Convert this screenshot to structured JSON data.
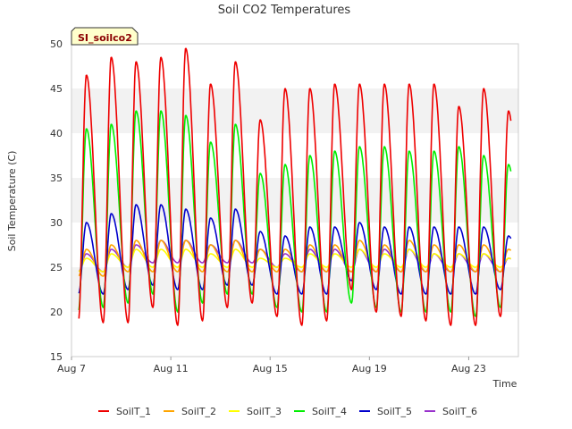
{
  "chart_data": {
    "type": "line",
    "title": "Soil CO2 Temperatures",
    "badge": "SI_soilco2",
    "xlabel": "Time",
    "ylabel": "Soil Temperature (C)",
    "ylim": [
      15,
      50
    ],
    "yticks": [
      15,
      20,
      25,
      30,
      35,
      40,
      45,
      50
    ],
    "xlim_days": [
      7,
      25
    ],
    "xticks": [
      {
        "day": 7,
        "label": "Aug 7"
      },
      {
        "day": 11,
        "label": "Aug 11"
      },
      {
        "day": 15,
        "label": "Aug 15"
      },
      {
        "day": 19,
        "label": "Aug 19"
      },
      {
        "day": 23,
        "label": "Aug 23"
      }
    ],
    "grid": "horizontal bands",
    "legend_position": "bottom",
    "series": [
      {
        "name": "SoilT_1",
        "color": "#ee0000",
        "peaks": [
          46.5,
          48.5,
          48.0,
          48.5,
          49.5,
          45.5,
          48.0,
          41.5,
          45.0,
          45.0,
          45.5,
          45.5,
          45.5,
          45.5,
          45.5,
          43.0,
          45.0,
          42.5
        ],
        "troughs": [
          19.0,
          18.8,
          18.8,
          20.5,
          18.5,
          19.0,
          20.5,
          21.0,
          19.5,
          18.5,
          19.0,
          22.5,
          20.0,
          19.5,
          19.0,
          18.5,
          18.5,
          19.5
        ]
      },
      {
        "name": "SoilT_2",
        "color": "#ffa500",
        "peaks": [
          27.0,
          27.5,
          28.0,
          28.0,
          28.0,
          27.5,
          28.0,
          27.0,
          27.0,
          27.5,
          27.5,
          28.0,
          27.5,
          28.0,
          27.5,
          27.5,
          27.5,
          27.0
        ],
        "troughs": [
          24.0,
          24.0,
          24.5,
          24.5,
          24.5,
          24.5,
          24.5,
          24.5,
          24.5,
          24.5,
          24.5,
          24.5,
          24.5,
          24.5,
          24.5,
          24.5,
          24.5,
          24.5
        ]
      },
      {
        "name": "SoilT_3",
        "color": "#ffff00",
        "peaks": [
          26.0,
          26.5,
          27.0,
          27.0,
          27.0,
          26.5,
          27.0,
          26.0,
          26.0,
          26.5,
          26.5,
          27.0,
          26.5,
          27.0,
          26.5,
          26.5,
          26.5,
          26.0
        ],
        "troughs": [
          24.5,
          24.5,
          25.0,
          25.0,
          25.0,
          25.0,
          25.0,
          25.0,
          25.0,
          25.0,
          25.0,
          25.0,
          25.0,
          25.0,
          25.0,
          25.0,
          25.0,
          25.0
        ]
      },
      {
        "name": "SoilT_4",
        "color": "#00ee00",
        "peaks": [
          40.5,
          41.0,
          42.5,
          42.5,
          42.0,
          39.0,
          41.0,
          35.5,
          36.5,
          37.5,
          38.0,
          38.5,
          38.5,
          38.0,
          38.0,
          38.5,
          37.5,
          36.5
        ],
        "troughs": [
          20.0,
          20.5,
          21.0,
          22.0,
          20.0,
          21.0,
          22.0,
          22.0,
          20.5,
          20.0,
          20.0,
          21.0,
          20.5,
          20.0,
          20.0,
          20.0,
          19.5,
          20.5
        ]
      },
      {
        "name": "SoilT_5",
        "color": "#0000cc",
        "peaks": [
          30.0,
          31.0,
          32.0,
          32.0,
          31.5,
          30.5,
          31.5,
          29.0,
          28.5,
          29.5,
          29.5,
          30.0,
          29.5,
          29.5,
          29.5,
          29.5,
          29.5,
          28.5
        ],
        "troughs": [
          22.0,
          22.0,
          22.5,
          23.0,
          22.5,
          22.5,
          23.0,
          23.0,
          22.0,
          22.0,
          22.0,
          23.5,
          22.5,
          22.0,
          22.0,
          22.0,
          22.0,
          22.5
        ]
      },
      {
        "name": "SoilT_6",
        "color": "#9932cc",
        "peaks": [
          26.5,
          27.0,
          27.5,
          28.0,
          28.0,
          27.5,
          28.0,
          27.0,
          26.5,
          27.0,
          27.0,
          27.0,
          27.0,
          27.0,
          26.5,
          26.5,
          26.5,
          26.0
        ],
        "troughs": [
          24.5,
          24.5,
          25.0,
          25.5,
          25.5,
          25.5,
          25.5,
          25.5,
          25.0,
          24.5,
          24.5,
          24.5,
          24.5,
          24.5,
          24.5,
          24.5,
          24.5,
          24.5
        ]
      }
    ]
  }
}
